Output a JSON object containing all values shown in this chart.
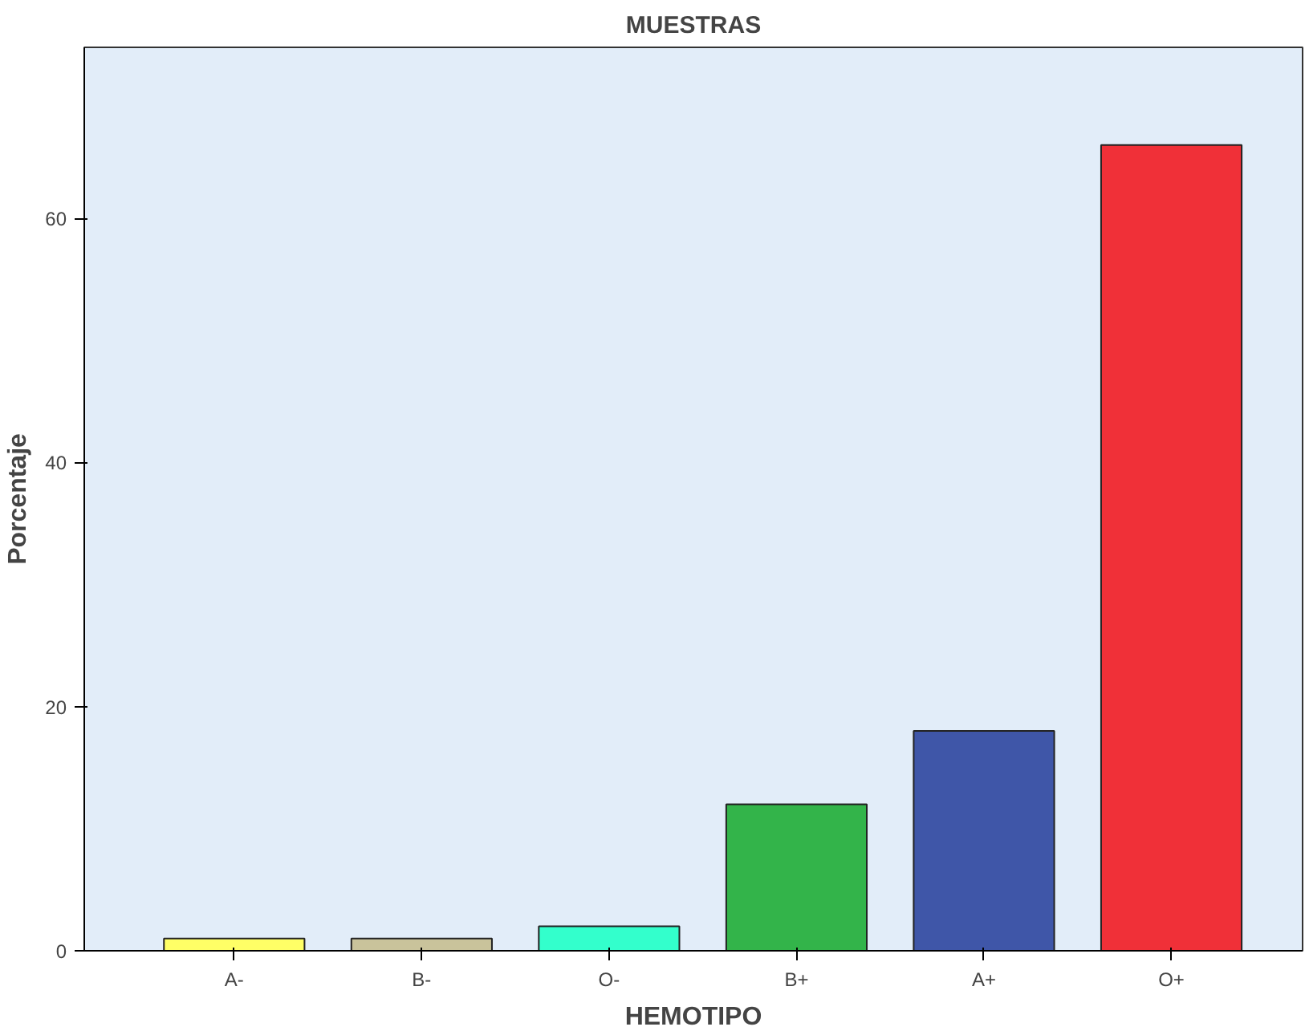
{
  "chart_data": {
    "type": "bar",
    "title": "MUESTRAS",
    "xlabel": "HEMOTIPO",
    "ylabel": "Porcentaje",
    "categories": [
      "A-",
      "B-",
      "O-",
      "B+",
      "A+",
      "O+"
    ],
    "values": [
      1,
      1,
      2,
      12,
      18,
      66
    ],
    "colors": [
      "#ffff66",
      "#c9c39b",
      "#33ffcc",
      "#33b44a",
      "#3f56a8",
      "#f03038"
    ],
    "ylim": [
      0,
      74
    ],
    "yticks": [
      0,
      20,
      40,
      60
    ],
    "grid": false
  }
}
